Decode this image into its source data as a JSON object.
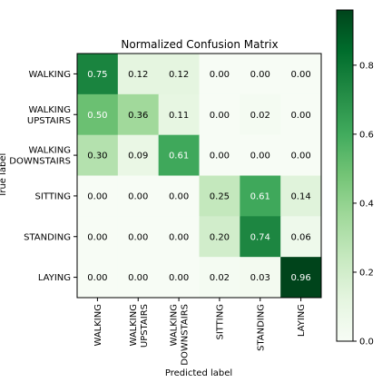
{
  "chart_data": {
    "type": "heatmap",
    "title": "Normalized Confusion Matrix",
    "xlabel": "Predicted label",
    "ylabel": "True label",
    "row_labels": [
      [
        "WALKING"
      ],
      [
        "WALKING",
        "UPSTAIRS"
      ],
      [
        "WALKING",
        "DOWNSTAIRS"
      ],
      [
        "SITTING"
      ],
      [
        "STANDING"
      ],
      [
        "LAYING"
      ]
    ],
    "col_labels": [
      [
        "WALKING"
      ],
      [
        "WALKING",
        "UPSTAIRS"
      ],
      [
        "WALKING",
        "DOWNSTAIRS"
      ],
      [
        "SITTING"
      ],
      [
        "STANDING"
      ],
      [
        "LAYING"
      ]
    ],
    "values": [
      [
        0.75,
        0.12,
        0.12,
        0.0,
        0.0,
        0.0
      ],
      [
        0.5,
        0.36,
        0.11,
        0.0,
        0.02,
        0.0
      ],
      [
        0.3,
        0.09,
        0.61,
        0.0,
        0.0,
        0.0
      ],
      [
        0.0,
        0.0,
        0.0,
        0.25,
        0.61,
        0.14
      ],
      [
        0.0,
        0.0,
        0.0,
        0.2,
        0.74,
        0.06
      ],
      [
        0.0,
        0.0,
        0.0,
        0.02,
        0.03,
        0.96
      ]
    ],
    "value_format": "0.00",
    "colormap": "Greens",
    "colorbar": {
      "range": [
        0.0,
        0.96
      ],
      "ticks": [
        0.0,
        0.2,
        0.4,
        0.6,
        0.8
      ],
      "tick_labels": [
        "0.0",
        "0.2",
        "0.4",
        "0.6",
        "0.8"
      ]
    },
    "grid": false
  }
}
